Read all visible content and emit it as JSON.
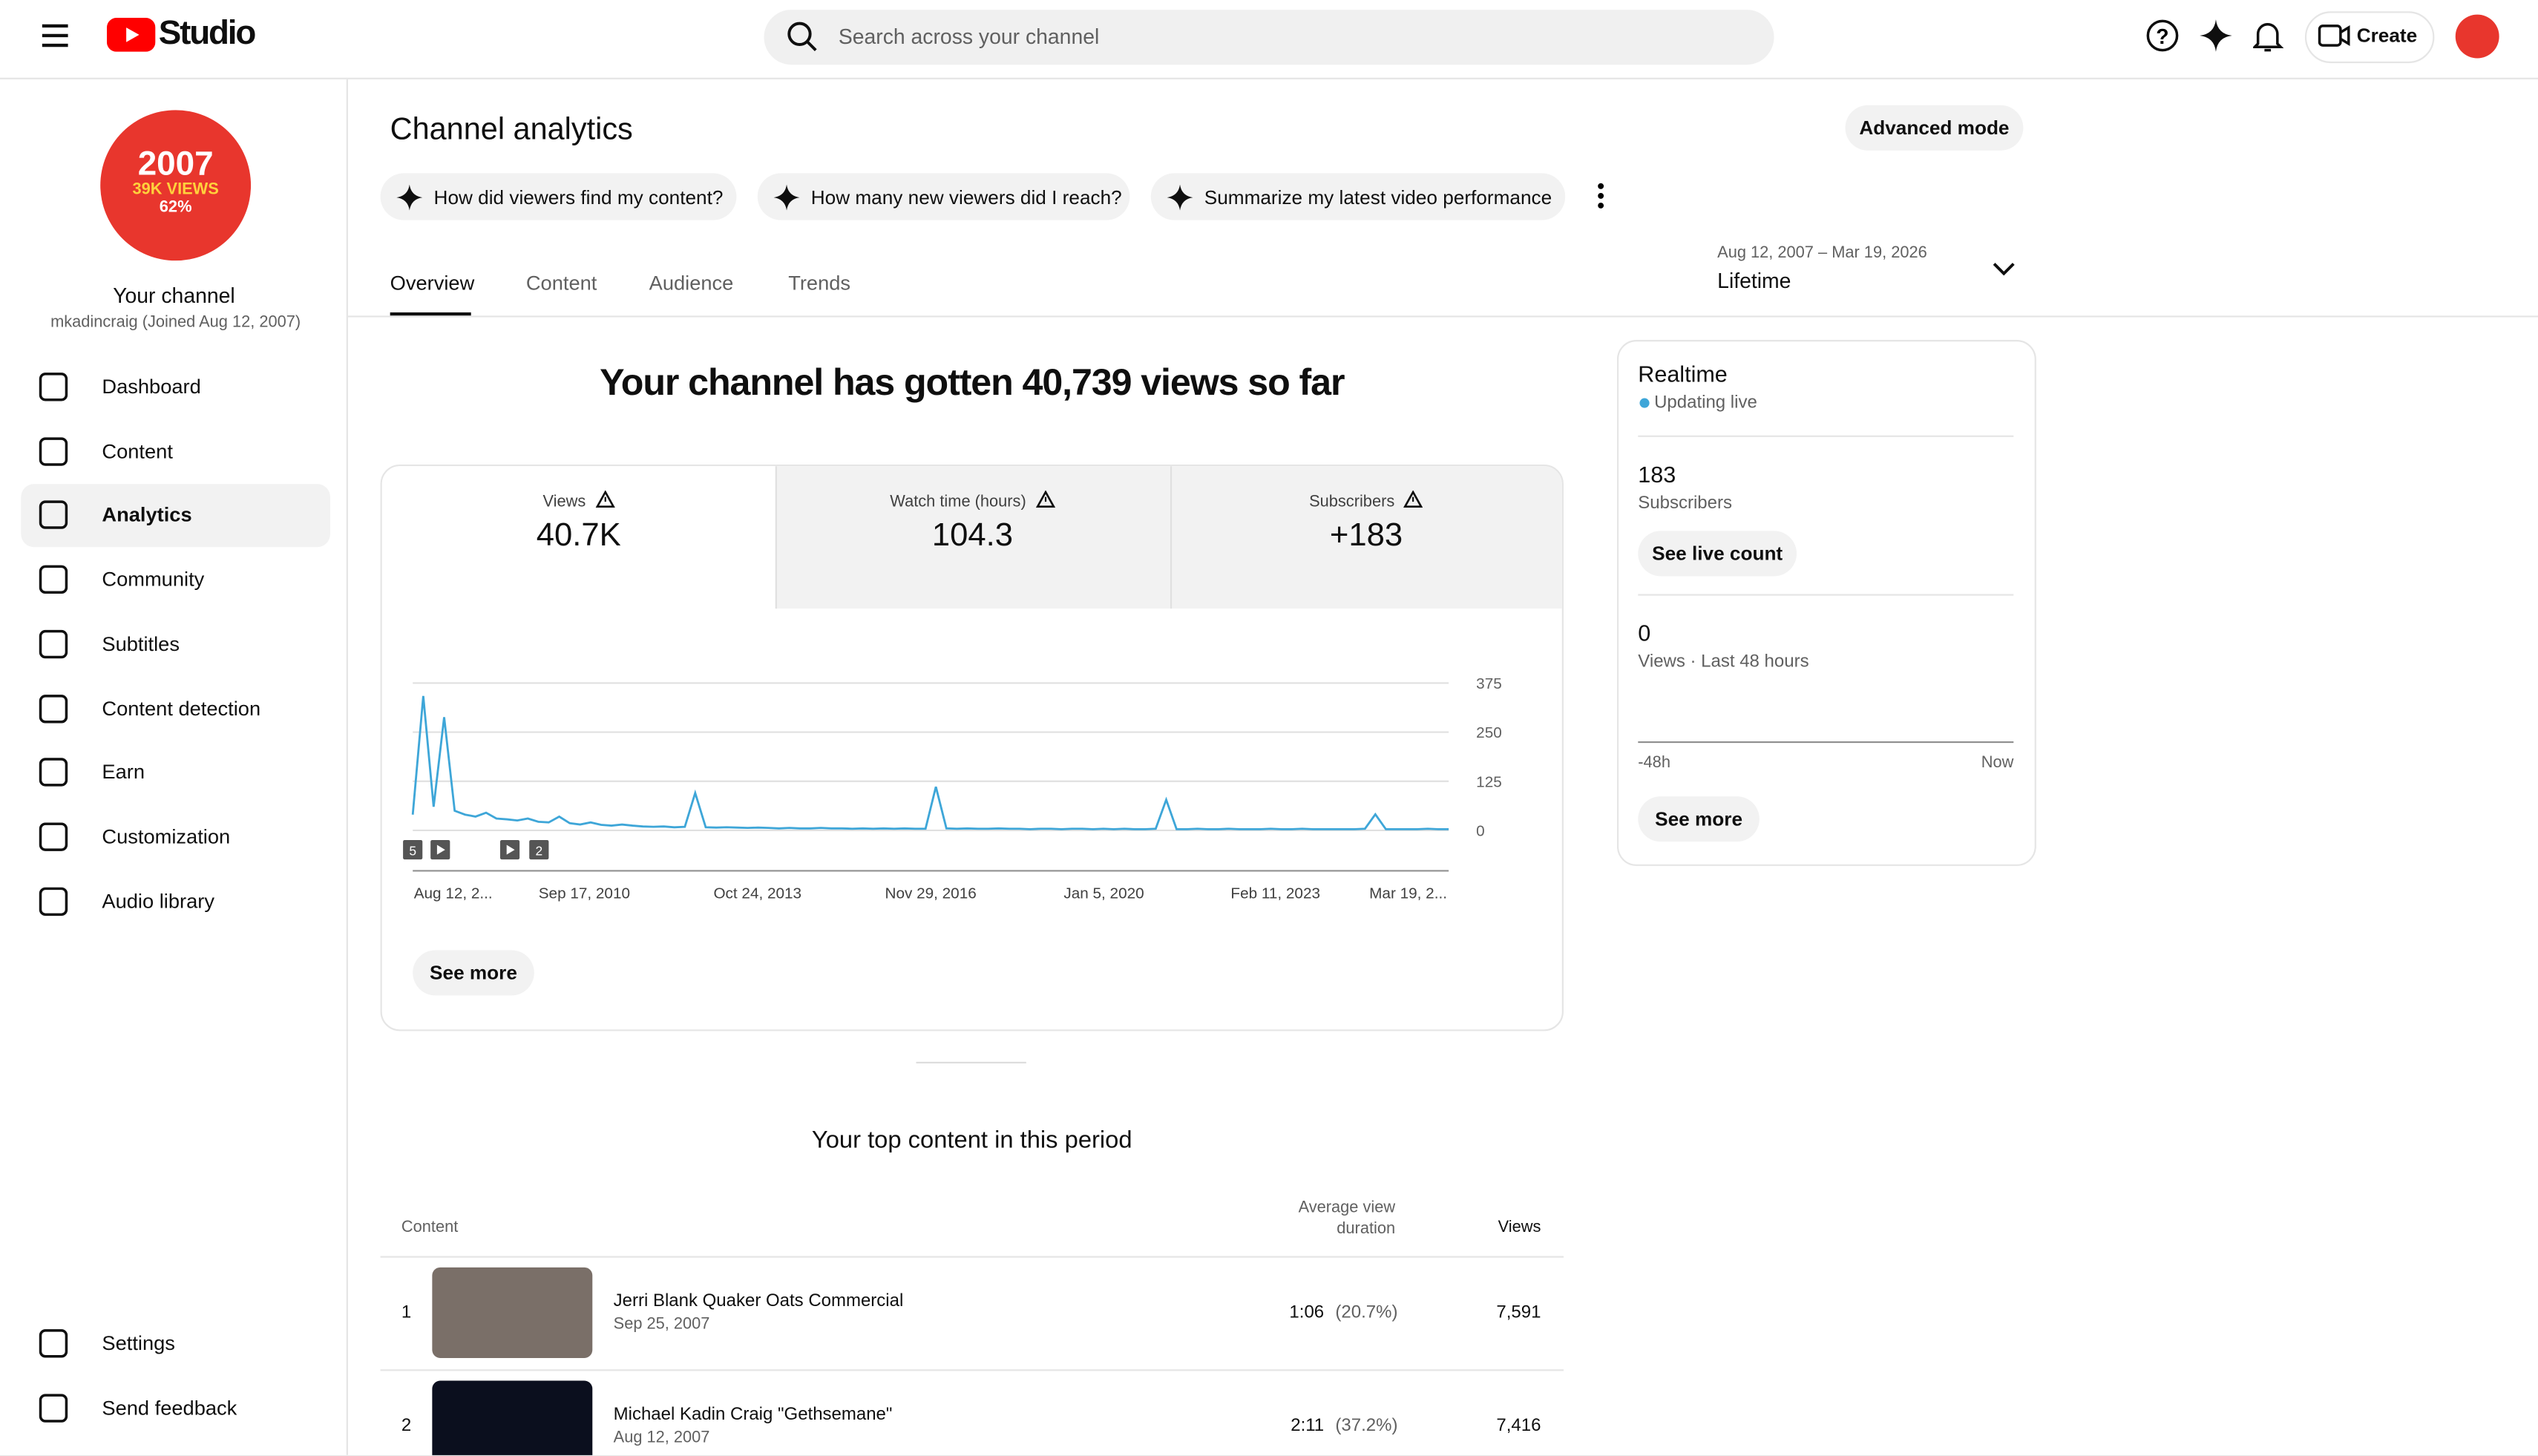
{
  "header": {
    "logo": "Studio",
    "search": "Search across your channel",
    "create": "Create"
  },
  "sidebar": {
    "avatar": {
      "line1": "2007",
      "line2": "39K VIEWS",
      "line3": "62%"
    },
    "channel_name": "Your channel",
    "channel_meta": "mkadincraig (Joined Aug 12, 2007)",
    "nav": [
      "Dashboard",
      "Content",
      "Analytics",
      "Community",
      "Subtitles",
      "Content detection",
      "Earn",
      "Customization",
      "Audio library"
    ],
    "footer": [
      "Settings",
      "Send feedback"
    ]
  },
  "page": {
    "title": "Channel analytics",
    "advanced": "Advanced mode",
    "prompts": [
      "How did viewers find my content?",
      "How many new viewers did I reach?",
      "Summarize my latest video performance"
    ],
    "tabs": [
      "Overview",
      "Content",
      "Audience",
      "Trends"
    ],
    "date_range": "Aug 12, 2007 – Mar 19, 2026",
    "period": "Lifetime"
  },
  "overview": {
    "headline": "Your channel has gotten 40,739 views so far",
    "metrics": [
      {
        "label": "Views",
        "value": "40.7K"
      },
      {
        "label": "Watch time (hours)",
        "value": "104.3"
      },
      {
        "label": "Subscribers",
        "value": "+183"
      }
    ],
    "see_more": "See more"
  },
  "chart": {
    "type": "line",
    "color": "#3ea6d8",
    "ylim": [
      0,
      375
    ],
    "yticks": [
      0,
      125,
      250,
      375
    ],
    "grid": true,
    "xtick_labels": [
      "Aug 12, 2...",
      "Sep 17, 2010",
      "Oct 24, 2013",
      "Nov 29, 2016",
      "Jan 5, 2020",
      "Feb 11, 2023",
      "Mar 19, 2..."
    ],
    "annotations": [
      5,
      2
    ],
    "values": [
      40,
      342,
      60,
      288,
      50,
      40,
      35,
      45,
      30,
      28,
      25,
      30,
      22,
      20,
      35,
      18,
      15,
      20,
      14,
      12,
      15,
      12,
      10,
      9,
      10,
      8,
      9,
      95,
      8,
      7,
      8,
      7,
      6,
      7,
      6,
      5,
      6,
      5,
      5,
      6,
      5,
      5,
      4,
      5,
      4,
      5,
      4,
      5,
      4,
      4,
      111,
      5,
      4,
      5,
      4,
      4,
      5,
      4,
      4,
      3,
      4,
      4,
      3,
      4,
      4,
      3,
      4,
      3,
      4,
      3,
      3,
      4,
      78,
      3,
      3,
      4,
      3,
      3,
      4,
      3,
      3,
      3,
      4,
      3,
      3,
      4,
      3,
      3,
      3,
      3,
      3,
      4,
      41,
      3,
      3,
      3,
      3,
      4,
      3,
      3
    ]
  },
  "top_content": {
    "title": "Your top content in this period",
    "columns": [
      "Content",
      "Average view duration",
      "Views"
    ],
    "rows": [
      {
        "rank": 1,
        "title": "Jerri Blank Quaker Oats Commercial",
        "date": "Sep 25, 2007",
        "duration": "1:06",
        "percent": "(20.7%)",
        "views": "7,591"
      },
      {
        "rank": 2,
        "title": "Michael Kadin Craig \"Gethsemane\"",
        "date": "Aug 12, 2007",
        "duration": "2:11",
        "percent": "(37.2%)",
        "views": "7,416"
      }
    ]
  },
  "realtime": {
    "title": "Realtime",
    "status": "Updating live",
    "subscribers": 183,
    "subscribers_label": "Subscribers",
    "live_button": "See live count",
    "views": 0,
    "views_label": "Views · Last 48 hours",
    "axis_start": "-48h",
    "axis_end": "Now",
    "see_more": "See more"
  }
}
